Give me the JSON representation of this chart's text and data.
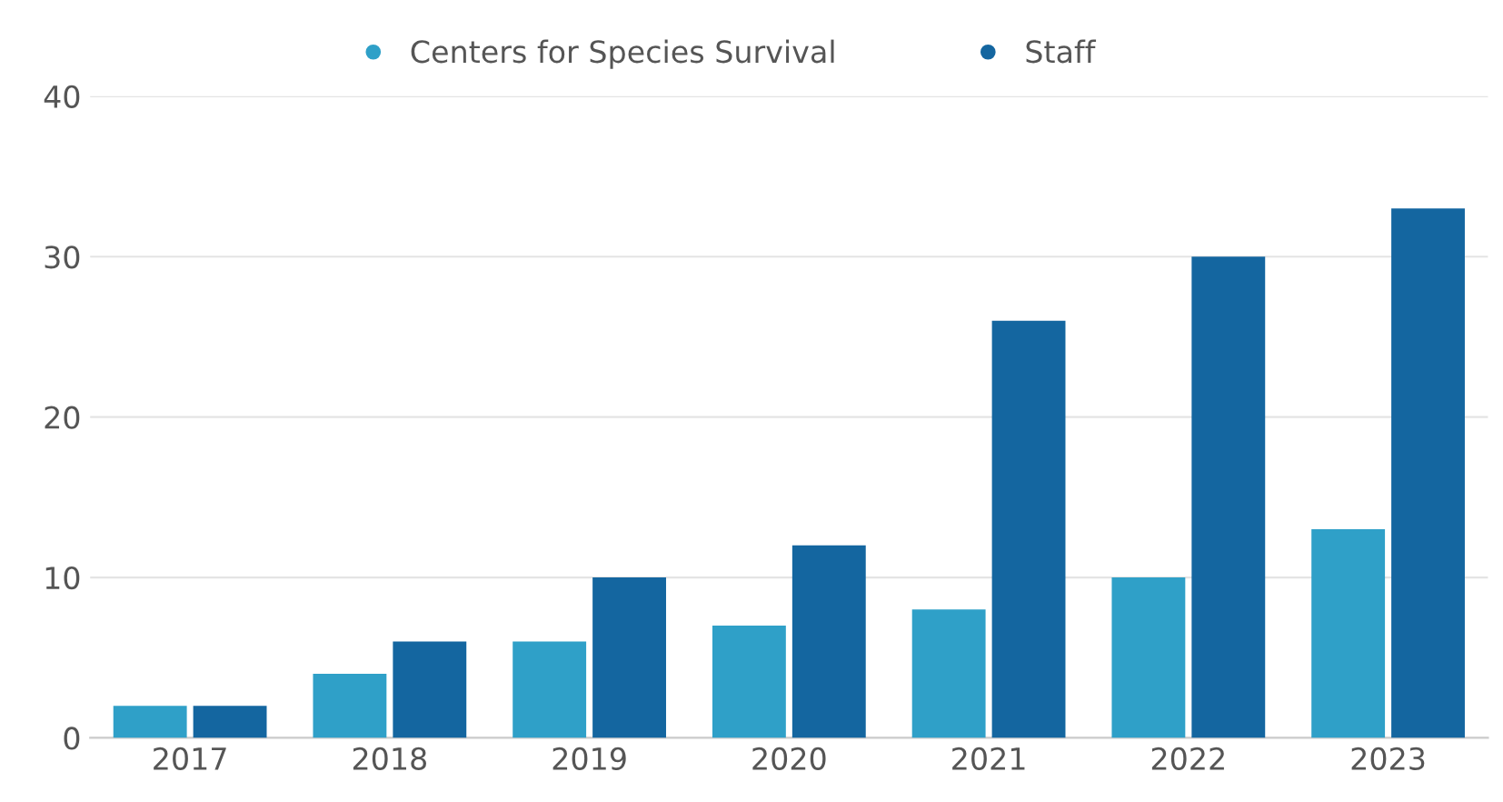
{
  "chart_data": {
    "type": "bar",
    "categories": [
      "2017",
      "2018",
      "2019",
      "2020",
      "2021",
      "2022",
      "2023"
    ],
    "series": [
      {
        "name": "Centers for Species Survival",
        "color": "#2fa0c8",
        "values": [
          2,
          4,
          6,
          7,
          8,
          10,
          13
        ]
      },
      {
        "name": "Staff",
        "color": "#1466a0",
        "values": [
          2,
          6,
          10,
          12,
          26,
          30,
          33
        ]
      }
    ],
    "ylim": [
      0,
      40
    ],
    "yticks": [
      0,
      10,
      20,
      30,
      40
    ],
    "grid": "y",
    "legend": "top"
  }
}
